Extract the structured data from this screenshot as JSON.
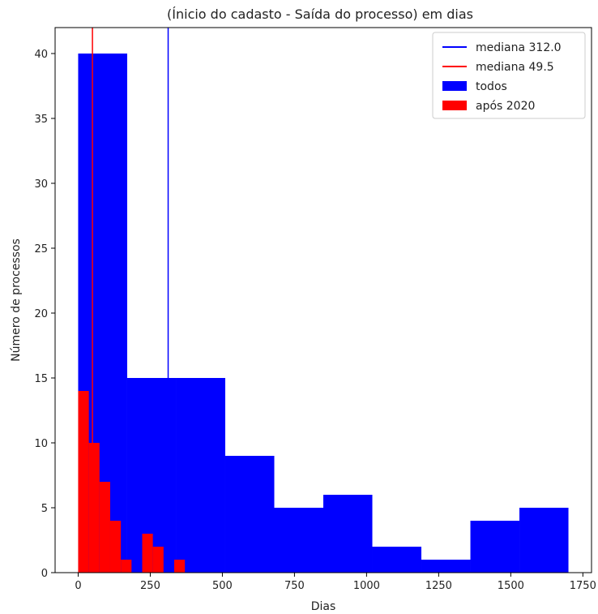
{
  "chart_data": {
    "type": "bar",
    "title": "(Ínicio do cadasto - Saída do processo) em dias",
    "xlabel": "Dias",
    "ylabel": "Número de processos",
    "xlim": [
      -80,
      1780
    ],
    "ylim": [
      0,
      42
    ],
    "xticks": [
      0,
      250,
      500,
      750,
      1000,
      1250,
      1500,
      1750
    ],
    "yticks": [
      0,
      5,
      10,
      15,
      20,
      25,
      30,
      35,
      40
    ],
    "grid": false,
    "legend_position": "top-right",
    "series": [
      {
        "name": "todos",
        "color": "#0000ff",
        "bins": [
          {
            "x0": 0,
            "x1": 170,
            "count": 40
          },
          {
            "x0": 170,
            "x1": 340,
            "count": 15
          },
          {
            "x0": 340,
            "x1": 510,
            "count": 15
          },
          {
            "x0": 510,
            "x1": 680,
            "count": 9
          },
          {
            "x0": 680,
            "x1": 850,
            "count": 5
          },
          {
            "x0": 850,
            "x1": 1020,
            "count": 6
          },
          {
            "x0": 1020,
            "x1": 1190,
            "count": 2
          },
          {
            "x0": 1190,
            "x1": 1360,
            "count": 1
          },
          {
            "x0": 1360,
            "x1": 1530,
            "count": 4
          },
          {
            "x0": 1530,
            "x1": 1700,
            "count": 5
          }
        ]
      },
      {
        "name": "após 2020",
        "color": "#ff0000",
        "bins": [
          {
            "x0": 0,
            "x1": 37,
            "count": 14
          },
          {
            "x0": 37,
            "x1": 74,
            "count": 10
          },
          {
            "x0": 74,
            "x1": 111,
            "count": 7
          },
          {
            "x0": 111,
            "x1": 148,
            "count": 4
          },
          {
            "x0": 148,
            "x1": 185,
            "count": 1
          },
          {
            "x0": 185,
            "x1": 222,
            "count": 0
          },
          {
            "x0": 222,
            "x1": 259,
            "count": 3
          },
          {
            "x0": 259,
            "x1": 296,
            "count": 2
          },
          {
            "x0": 296,
            "x1": 333,
            "count": 0
          },
          {
            "x0": 333,
            "x1": 370,
            "count": 1
          }
        ]
      }
    ],
    "medians": [
      {
        "label": "mediana 312.0",
        "value": 312.0,
        "color": "#0000ff"
      },
      {
        "label": "mediana 49.5",
        "value": 49.5,
        "color": "#ff0000"
      }
    ],
    "legend": [
      {
        "label": "mediana 312.0",
        "kind": "line",
        "color": "#0000ff"
      },
      {
        "label": "mediana 49.5",
        "kind": "line",
        "color": "#ff0000"
      },
      {
        "label": "todos",
        "kind": "patch",
        "color": "#0000ff"
      },
      {
        "label": "após 2020",
        "kind": "patch",
        "color": "#ff0000"
      }
    ]
  }
}
